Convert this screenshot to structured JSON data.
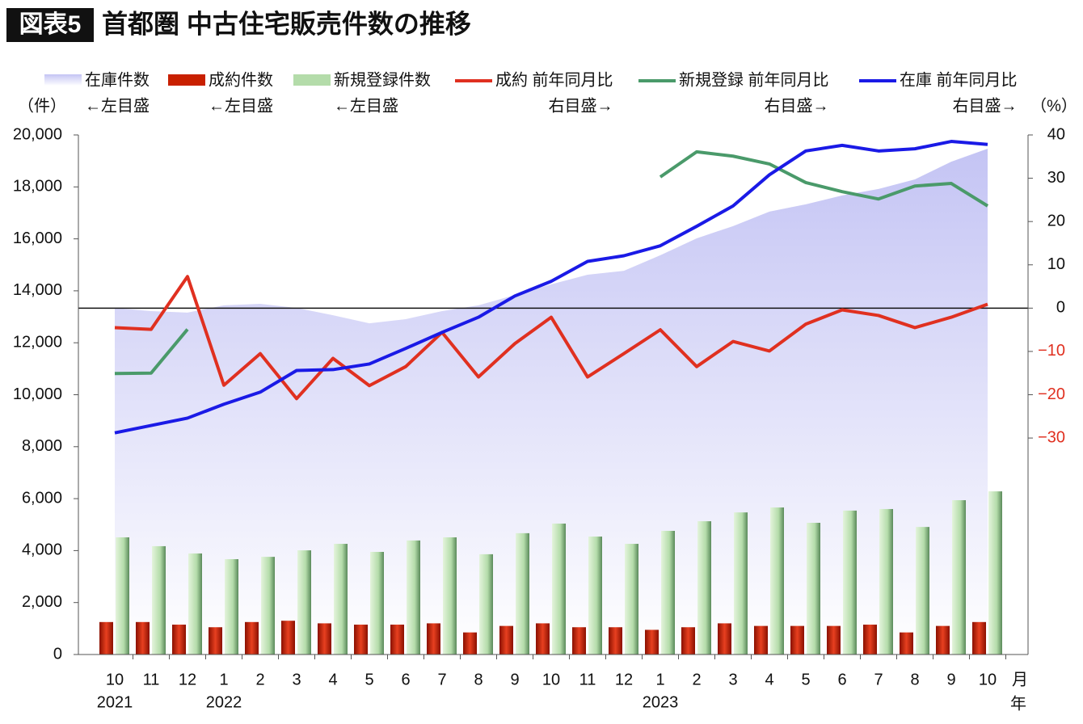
{
  "chart_data": {
    "type": "combo",
    "title_badge": "図表5",
    "title": "首都圏 中古住宅販売件数の推移",
    "ylabel": "（件）",
    "y2label": "（%）",
    "xlabel": "月",
    "xlabel2": "年",
    "categories": [
      "10",
      "11",
      "12",
      "1",
      "2",
      "3",
      "4",
      "5",
      "6",
      "7",
      "8",
      "9",
      "10",
      "11",
      "12",
      "1",
      "2",
      "3",
      "4",
      "5",
      "6",
      "7",
      "8",
      "9",
      "10"
    ],
    "category_years": [
      "2021",
      null,
      null,
      "2022",
      null,
      null,
      null,
      null,
      null,
      null,
      null,
      null,
      null,
      null,
      null,
      "2023",
      null,
      null,
      null,
      null,
      null,
      null,
      null,
      null,
      null
    ],
    "ylim": [
      0,
      20000
    ],
    "yticks": [
      0,
      {
        "value": 2000,
        "label": "2,000"
      },
      {
        "value": 4000,
        "label": "4,000"
      },
      {
        "value": 6000,
        "label": "6,000"
      },
      {
        "value": 8000,
        "label": "8,000"
      },
      {
        "value": 10000,
        "label": "10,000"
      },
      {
        "value": 12000,
        "label": "12,000"
      },
      {
        "value": 14000,
        "label": "14,000"
      },
      {
        "value": 16000,
        "label": "16,000"
      },
      {
        "value": 18000,
        "label": "18,000"
      },
      {
        "value": 20000,
        "label": "20,000"
      }
    ],
    "y2lim": [
      -80,
      40
    ],
    "y2ticks": [
      {
        "value": -30,
        "label": "−30"
      },
      {
        "value": -20,
        "label": "−20"
      },
      {
        "value": -10,
        "label": "−10"
      },
      0,
      10,
      20,
      30,
      40
    ],
    "negative_tick_color": "#e03020",
    "zero_line": true,
    "series": [
      {
        "name": "在庫件数",
        "axis_note": "←左目盛",
        "type": "area",
        "axis": "y",
        "color": "#c4c4f4",
        "values": [
          13340,
          13220,
          13160,
          13440,
          13500,
          13340,
          13060,
          12750,
          12910,
          13220,
          13440,
          13840,
          14250,
          14620,
          14770,
          15370,
          16020,
          16490,
          17050,
          17330,
          17670,
          17920,
          18290,
          18970,
          19470
        ]
      },
      {
        "name": "成約件数",
        "axis_note": "←左目盛",
        "type": "bar",
        "axis": "y",
        "color": "#c82000",
        "values": [
          1250,
          1250,
          1150,
          1050,
          1250,
          1300,
          1200,
          1150,
          1150,
          1200,
          850,
          1100,
          1200,
          1050,
          1050,
          950,
          1050,
          1200,
          1100,
          1100,
          1100,
          1150,
          850,
          1100,
          1250
        ]
      },
      {
        "name": "新規登録件数",
        "axis_note": "←左目盛",
        "type": "bar",
        "axis": "y",
        "color": "#b4dcaa",
        "values": [
          4510,
          4170,
          3890,
          3670,
          3760,
          4010,
          4260,
          3950,
          4390,
          4510,
          3860,
          4670,
          5040,
          4540,
          4260,
          4760,
          5130,
          5470,
          5660,
          5070,
          5540,
          5600,
          4910,
          5940,
          6280
        ]
      },
      {
        "name": "成約 前年同月比",
        "axis_note": "右目盛→",
        "type": "line",
        "axis": "y2",
        "color": "#e03020",
        "values": [
          -4.5,
          -4.9,
          7.3,
          -17.8,
          -10.5,
          -20.9,
          -11.6,
          -17.9,
          -13.5,
          -5.6,
          -15.9,
          -8.2,
          -2.1,
          -15.9,
          -10.5,
          -5.0,
          -13.5,
          -7.7,
          -9.9,
          -3.7,
          -0.4,
          -1.7,
          -4.5,
          -2.1,
          0.9
        ]
      },
      {
        "name": "新規登録 前年同月比",
        "axis_note": "右目盛→",
        "type": "line",
        "axis": "y2",
        "color": "#4a9a6a",
        "values": [
          -15.1,
          -15.0,
          -4.9,
          null,
          null,
          null,
          null,
          null,
          null,
          null,
          null,
          null,
          null,
          null,
          null,
          30.3,
          36.1,
          35.1,
          33.3,
          29.0,
          26.9,
          25.2,
          28.2,
          28.8,
          23.6
        ]
      },
      {
        "name": "在庫 前年同月比",
        "axis_note": "右目盛→",
        "type": "line",
        "axis": "y2",
        "color": "#1a1ae6",
        "values": [
          -28.8,
          -27.1,
          -25.4,
          -22.2,
          -19.4,
          -14.4,
          -14.2,
          -12.9,
          -9.3,
          -5.6,
          -2.1,
          2.8,
          6.2,
          10.8,
          12.1,
          14.4,
          18.9,
          23.6,
          30.8,
          36.3,
          37.6,
          36.3,
          36.8,
          38.5,
          37.8
        ]
      }
    ]
  }
}
